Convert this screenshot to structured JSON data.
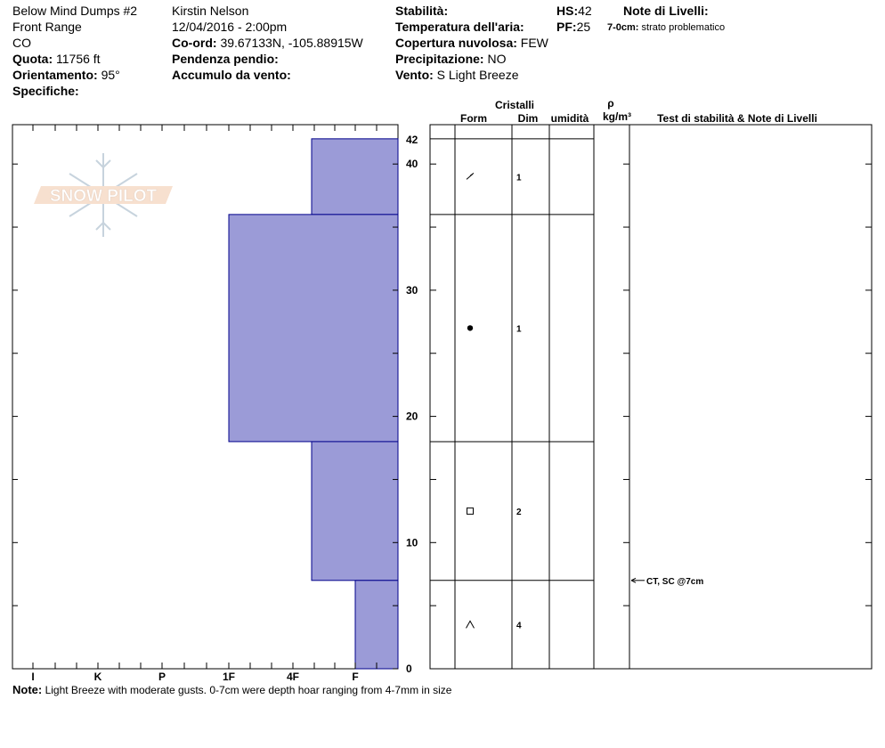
{
  "header": {
    "location_name": "Below Mind Dumps #2",
    "range": "Front Range",
    "state": "CO",
    "elevation_label": "Quota:",
    "elevation_value": "11756 ft",
    "aspect_label": "Orientamento:",
    "aspect_value": "95°",
    "specifics_label": "Specifiche:",
    "observer": "Kirstin Nelson",
    "datetime": "12/04/2016 - 2:00pm",
    "coord_label": "Co-ord:",
    "coord_value": "39.67133N, -105.88915W",
    "slope_label": "Pendenza pendio:",
    "wind_loading_label": "Accumulo da vento:",
    "stability_label": "Stabilità:",
    "air_temp_label": "Temperatura dell'aria:",
    "cloud_label": "Copertura nuvolosa:",
    "cloud_value": "FEW",
    "precip_label": "Precipitazione:",
    "precip_value": "NO",
    "wind_label": "Vento:",
    "wind_value": "S Light Breeze",
    "hs_label": "HS:",
    "hs_value": "42",
    "pf_label": "PF:",
    "pf_value": "25",
    "layer_notes_label": "Note di Livelli:",
    "layer_note_range": "7-0cm:",
    "layer_note_text": "strato problematico"
  },
  "table_headers": {
    "crystals": "Cristalli",
    "form": "Form",
    "dim": "Dim",
    "moisture": "umidità",
    "rho": "ρ",
    "density_unit": "kg/m³",
    "stability_notes": "Test di stabilità & Note di Livelli"
  },
  "logo_text": "SNOW PILOT",
  "note": {
    "label": "Note:",
    "text": "Light Breeze with moderate gusts.  0-7cm were depth hoar ranging from 4-7mm in size"
  },
  "colors": {
    "hardness_fill": "#9b9bd7",
    "hardness_stroke": "#00008b"
  },
  "chart_data": {
    "type": "bar",
    "title": "",
    "xlabel": "",
    "ylabel": "",
    "hardness_scale": [
      "I",
      "K",
      "P",
      "1F",
      "4F",
      "F"
    ],
    "ylim": [
      0,
      42
    ],
    "y_ticks": [
      0,
      10,
      20,
      30,
      40,
      42
    ],
    "layers": [
      {
        "top": 42,
        "bottom": 36,
        "hardness": "F-",
        "hardness_index": 5.3,
        "form_icon": "decomposed-fragment",
        "dim": "1"
      },
      {
        "top": 36,
        "bottom": 18,
        "hardness": "4F",
        "hardness_index": 4.0,
        "form_icon": "rounded-grain",
        "dim": "1"
      },
      {
        "top": 18,
        "bottom": 7,
        "hardness": "F-",
        "hardness_index": 5.3,
        "form_icon": "faceted-crystal",
        "dim": "2"
      },
      {
        "top": 7,
        "bottom": 0,
        "hardness": "F",
        "hardness_index": 6.0,
        "form_icon": "depth-hoar",
        "dim": "4"
      }
    ],
    "tests": [
      {
        "depth": 7,
        "text": "CT, SC @7cm"
      }
    ]
  }
}
